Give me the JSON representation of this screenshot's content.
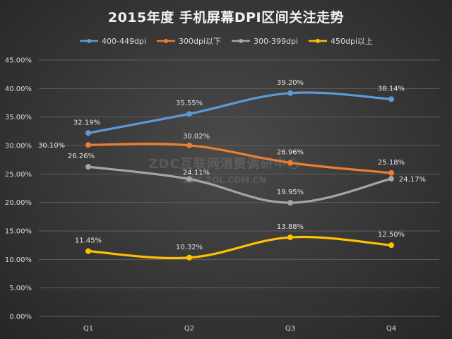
{
  "chart_data": {
    "type": "line",
    "title": "2015年度 手机屏幕DPI区间关注走势",
    "categories": [
      "Q1",
      "Q2",
      "Q3",
      "Q4"
    ],
    "ylim": [
      0,
      45
    ],
    "yticks": [
      0,
      5,
      10,
      15,
      20,
      25,
      30,
      35,
      40,
      45
    ],
    "ytick_labels": [
      "0.00%",
      "5.00%",
      "10.00%",
      "15.00%",
      "20.00%",
      "25.00%",
      "30.00%",
      "35.00%",
      "40.00%",
      "45.00%"
    ],
    "legend_position": "top",
    "grid": true,
    "series": [
      {
        "name": "400-449dpi",
        "color": "#5b9bd5",
        "values": [
          32.19,
          35.55,
          39.2,
          38.14
        ],
        "labels": [
          "32.19%",
          "35.55%",
          "39.20%",
          "38.14%"
        ]
      },
      {
        "name": "300dpi以下",
        "color": "#ed7d31",
        "values": [
          30.1,
          30.02,
          26.96,
          25.18
        ],
        "labels": [
          "30.10%",
          "30.02%",
          "26.96%",
          "25.18%"
        ]
      },
      {
        "name": "300-399dpi",
        "color": "#a5a5a5",
        "values": [
          26.26,
          24.11,
          19.95,
          24.17
        ],
        "labels": [
          "26.26%",
          "24.11%",
          "19.95%",
          "24.17%"
        ]
      },
      {
        "name": "450dpi以上",
        "color": "#ffc000",
        "values": [
          11.45,
          10.32,
          13.88,
          12.5
        ],
        "labels": [
          "11.45%",
          "10.32%",
          "13.88%",
          "12.50%"
        ]
      }
    ]
  },
  "watermark": {
    "line1": "ZDC互联网消费调研中心",
    "line2": "ZDC.ZOL.COM.CN"
  }
}
